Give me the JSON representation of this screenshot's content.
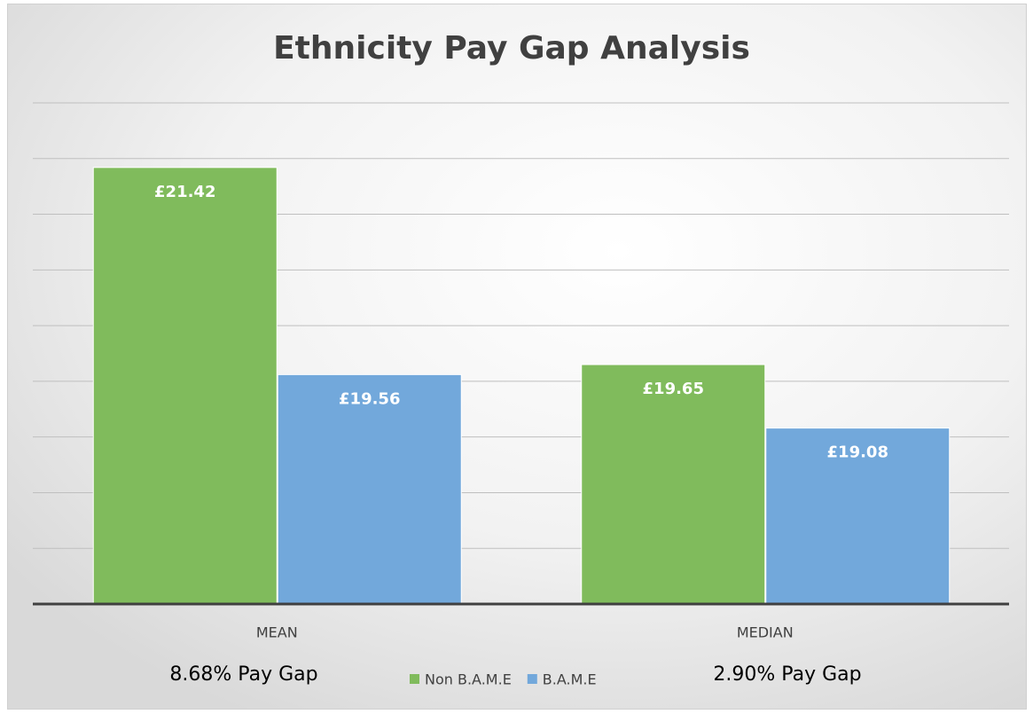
{
  "chart_data": {
    "type": "bar",
    "title": "Ethnicity Pay Gap Analysis",
    "categories": [
      "MEAN",
      "MEDIAN"
    ],
    "series": [
      {
        "name": "Non B.A.M.E",
        "color": "#80bb5c",
        "values": [
          21.42,
          19.65
        ],
        "value_labels": [
          "£21.42",
          "£19.65"
        ]
      },
      {
        "name": "B.A.M.E",
        "color": "#72a8db",
        "values": [
          19.56,
          19.08
        ],
        "value_labels": [
          "£19.56",
          "£19.08"
        ]
      }
    ],
    "ylim": [
      17.5,
      22
    ],
    "yticks": [
      17.5,
      18,
      18.5,
      19,
      19.5,
      20,
      20.5,
      21,
      21.5,
      22
    ],
    "grid": true,
    "legend": "bottom",
    "annotations": [
      "8.68% Pay Gap",
      "2.90% Pay Gap"
    ]
  }
}
